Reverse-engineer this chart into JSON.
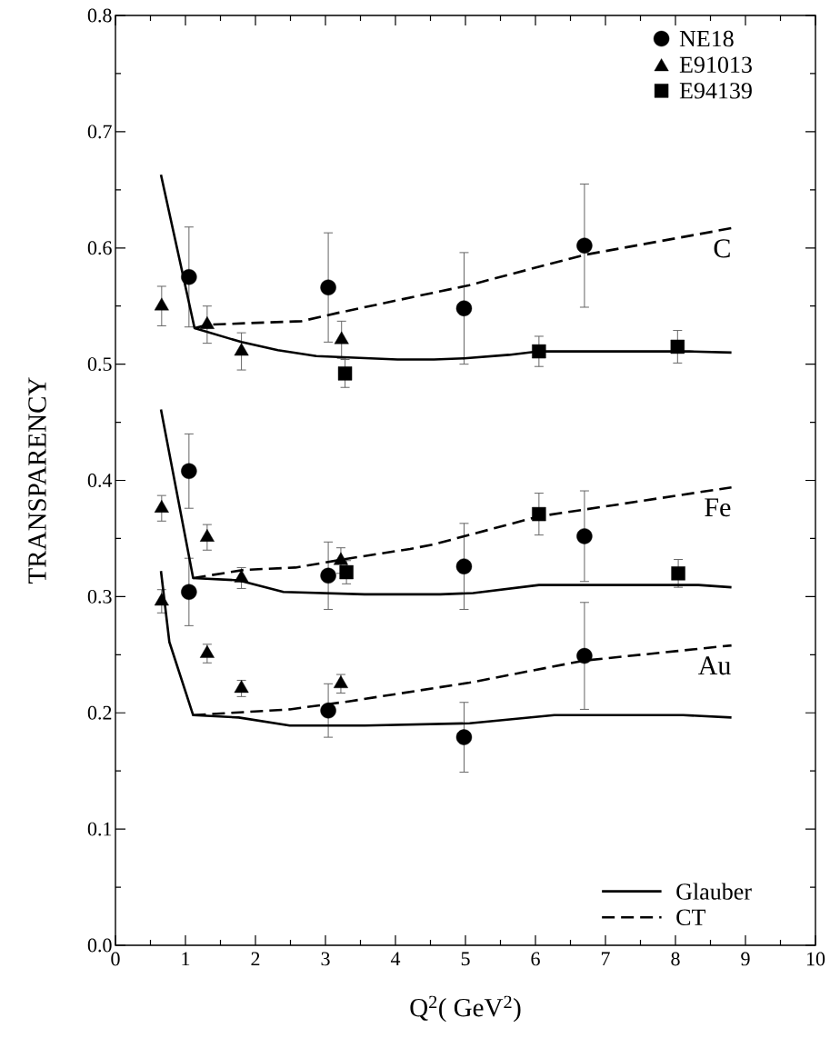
{
  "chart_data": {
    "type": "scatter",
    "xlabel": "Q$^{2}$( GeV$^{2}$)",
    "ylabel": "TRANSPARENCY",
    "xlim": [
      0,
      10
    ],
    "ylim": [
      0,
      0.8
    ],
    "xticks": [
      0,
      1,
      2,
      3,
      4,
      5,
      6,
      7,
      8,
      9,
      10
    ],
    "yticks": [
      {
        "value": 0,
        "label": "0.0"
      },
      0.1,
      0.2,
      0.3,
      0.4,
      0.5,
      0.6,
      0.7,
      0.8
    ],
    "legend": "top right",
    "grid": false,
    "series": [
      {
        "name": "NE18",
        "marker": "circle",
        "color": "#000000",
        "x": [
          1.05,
          3.04,
          4.98,
          6.7,
          1.05,
          3.04,
          4.98,
          6.7,
          1.05,
          3.04,
          4.98,
          6.7
        ],
        "values": [
          0.575,
          0.566,
          0.548,
          0.602,
          0.408,
          0.318,
          0.326,
          0.352,
          0.304,
          0.202,
          0.179,
          0.249
        ],
        "errors": [
          0.043,
          0.047,
          0.048,
          0.053,
          0.032,
          0.029,
          0.037,
          0.039,
          0.029,
          0.023,
          0.03,
          0.046
        ]
      },
      {
        "name": "E91013",
        "marker": "triangle",
        "color": "#000000",
        "x": [
          0.66,
          1.31,
          1.8,
          3.23,
          0.66,
          1.31,
          1.8,
          3.22,
          0.66,
          1.31,
          1.8,
          3.22
        ],
        "values": [
          0.55,
          0.534,
          0.511,
          0.521,
          0.376,
          0.351,
          0.316,
          0.331,
          0.296,
          0.251,
          0.221,
          0.225
        ],
        "errors": [
          0.017,
          0.016,
          0.016,
          0.016,
          0.011,
          0.011,
          0.009,
          0.011,
          0.01,
          0.008,
          0.007,
          0.008
        ]
      },
      {
        "name": "E94139",
        "marker": "square",
        "color": "#000000",
        "x": [
          3.28,
          6.05,
          8.03,
          3.3,
          6.05,
          8.04
        ],
        "values": [
          0.492,
          0.511,
          0.515,
          0.321,
          0.371,
          0.32
        ],
        "errors": [
          0.012,
          0.013,
          0.014,
          0.01,
          0.018,
          0.012
        ]
      },
      {
        "name": "Glauber",
        "type": "line",
        "line_style": "solid",
        "color": "#000000",
        "x": [
          0.65,
          1.13,
          1.8,
          2.32,
          2.87,
          4.03,
          4.55,
          4.98,
          5.62,
          6.05,
          8.2,
          8.8
        ],
        "values": [
          0.663,
          0.531,
          0.519,
          0.512,
          0.507,
          0.504,
          0.504,
          0.505,
          0.508,
          0.511,
          0.511,
          0.51
        ]
      },
      {
        "name": "CT",
        "type": "line",
        "line_style": "dashed",
        "color": "#000000",
        "x": [
          1.13,
          1.33,
          2.66,
          3.17,
          4.03,
          5.06,
          5.62,
          6.7,
          8.8
        ],
        "values": [
          0.531,
          0.534,
          0.537,
          0.544,
          0.555,
          0.568,
          0.577,
          0.594,
          0.617
        ]
      },
      {
        "type": "line",
        "line_style": "solid",
        "color": "#000000",
        "x": [
          0.65,
          1.11,
          1.76,
          2.4,
          3.56,
          4.64,
          5.11,
          6.05,
          8.33,
          8.8
        ],
        "values": [
          0.461,
          0.316,
          0.314,
          0.304,
          0.302,
          0.302,
          0.303,
          0.31,
          0.31,
          0.308
        ]
      },
      {
        "type": "line",
        "line_style": "dashed",
        "color": "#000000",
        "x": [
          1.11,
          1.84,
          2.57,
          3.35,
          4.21,
          4.55,
          6.05,
          8.8
        ],
        "values": [
          0.316,
          0.323,
          0.325,
          0.333,
          0.341,
          0.345,
          0.369,
          0.394
        ]
      },
      {
        "type": "line",
        "line_style": "solid",
        "color": "#000000",
        "x": [
          0.65,
          0.77,
          1.11,
          1.76,
          2.49,
          3.56,
          5.06,
          6.27,
          8.11,
          8.8
        ],
        "values": [
          0.322,
          0.261,
          0.198,
          0.196,
          0.189,
          0.189,
          0.191,
          0.198,
          0.198,
          0.196
        ]
      },
      {
        "type": "line",
        "line_style": "dashed",
        "color": "#000000",
        "x": [
          1.11,
          2.49,
          3.35,
          5.06,
          6.7,
          8.8
        ],
        "values": [
          0.198,
          0.203,
          0.21,
          0.226,
          0.245,
          0.258
        ]
      }
    ],
    "annotations": [
      "C",
      "Fe",
      "Au"
    ]
  }
}
